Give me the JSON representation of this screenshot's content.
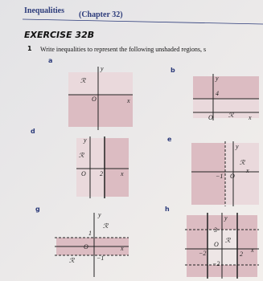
{
  "header": {
    "title": "Inequalities",
    "chapter": "(Chapter 32)"
  },
  "exercise": "EXERCISE 32B",
  "question": {
    "number": "1",
    "text": "Write inequalities to represent the following unshaded regions, s"
  },
  "parts": [
    {
      "label": "a",
      "texts": [
        "y",
        "ℛ",
        "O",
        "x"
      ]
    },
    {
      "label": "b",
      "texts": [
        "y",
        "4",
        "O",
        "ℛ",
        "x"
      ]
    },
    {
      "label": "d",
      "texts": [
        "y",
        "ℛ",
        "O",
        "2",
        "x"
      ]
    },
    {
      "label": "e",
      "texts": [
        "y",
        "ℛ",
        "−1",
        "O",
        "x"
      ]
    },
    {
      "label": "g",
      "texts": [
        "y",
        "ℛ",
        "1",
        "O",
        "x",
        "ℛ",
        "−1"
      ]
    },
    {
      "label": "h",
      "texts": [
        "y",
        "3",
        "ℛ",
        "O",
        "−2",
        "2",
        "−2",
        "x"
      ]
    }
  ]
}
